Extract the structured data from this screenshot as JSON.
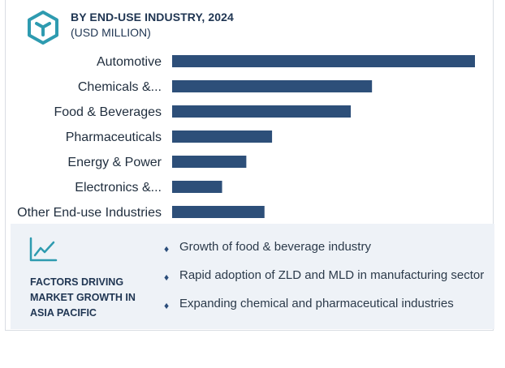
{
  "header": {
    "title": "BY END-USE INDUSTRY, 2024",
    "subtitle": "(USD MILLION)"
  },
  "colors": {
    "bar": "#2d4f79",
    "accent": "#2e9bb0",
    "panel": "#eef2f7"
  },
  "chart_data": {
    "type": "bar",
    "orientation": "horizontal",
    "categories": [
      "Automotive",
      "Chemicals &...",
      "Food & Beverages",
      "Pharmaceuticals",
      "Energy & Power",
      "Electronics &...",
      "Other End-use Industries"
    ],
    "values": [
      100,
      66,
      59,
      33,
      24.5,
      16.5,
      30.5
    ],
    "grid": false,
    "legend": "none"
  },
  "factors": {
    "title": "FACTORS DRIVING MARKET GROWTH IN ASIA PACIFIC",
    "items": [
      "Growth of food & beverage industry",
      "Rapid adoption of ZLD and MLD in manufacturing sector",
      "Expanding chemical and pharmaceutical industries"
    ]
  }
}
